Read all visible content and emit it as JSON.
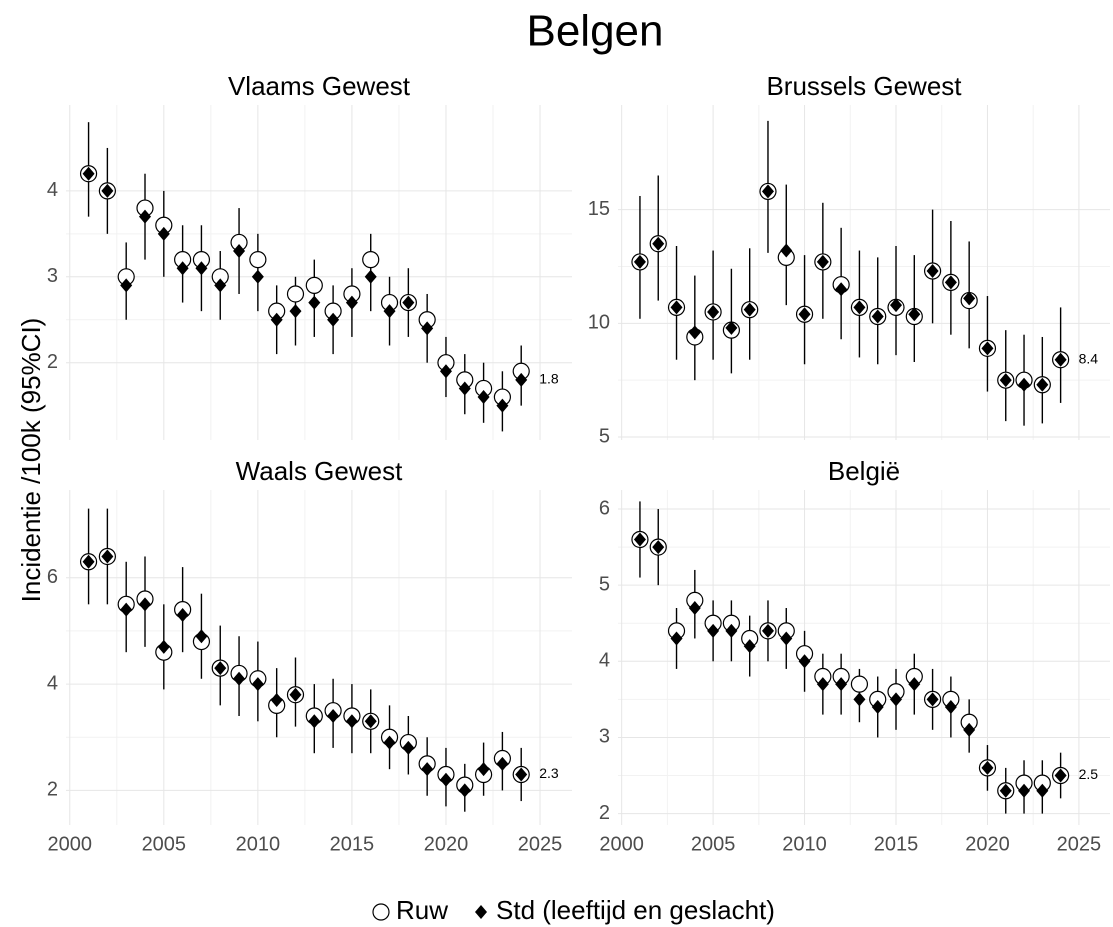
{
  "title": "Belgen",
  "y_label": "Incidentie /100k (95%CI)",
  "legend": [
    "Ruw",
    "Std (leeftijd en geslacht)"
  ],
  "chart_data": [
    {
      "type": "scatter",
      "title": "Vlaams Gewest",
      "x": [
        2001,
        2002,
        2003,
        2004,
        2005,
        2006,
        2007,
        2008,
        2009,
        2010,
        2011,
        2012,
        2013,
        2014,
        2015,
        2016,
        2017,
        2018,
        2019,
        2020,
        2021,
        2022,
        2023,
        2024
      ],
      "series": [
        {
          "marker": "circle",
          "color": "#000000",
          "values": [
            4.2,
            4.0,
            3.0,
            3.8,
            3.6,
            3.2,
            3.2,
            3.0,
            3.4,
            3.2,
            2.6,
            2.8,
            2.9,
            2.6,
            2.8,
            3.2,
            2.7,
            2.7,
            2.5,
            2.0,
            1.8,
            1.7,
            1.6,
            1.9
          ]
        },
        {
          "marker": "diamond",
          "color": "#000000",
          "values": [
            4.2,
            4.0,
            2.9,
            3.7,
            3.5,
            3.1,
            3.1,
            2.9,
            3.3,
            3.0,
            2.5,
            2.6,
            2.7,
            2.5,
            2.7,
            3.0,
            2.6,
            2.7,
            2.4,
            1.9,
            1.7,
            1.6,
            1.5,
            1.8
          ],
          "ci_low": [
            3.7,
            3.5,
            2.5,
            3.2,
            3.0,
            2.7,
            2.6,
            2.5,
            2.8,
            2.6,
            2.1,
            2.2,
            2.3,
            2.1,
            2.3,
            2.6,
            2.2,
            2.3,
            2.0,
            1.6,
            1.4,
            1.3,
            1.2,
            1.5
          ],
          "ci_high": [
            4.8,
            4.5,
            3.4,
            4.2,
            4.0,
            3.6,
            3.6,
            3.3,
            3.8,
            3.5,
            2.9,
            3.0,
            3.2,
            2.9,
            3.1,
            3.5,
            3.0,
            3.1,
            2.8,
            2.3,
            2.1,
            2.0,
            1.9,
            2.2
          ]
        }
      ],
      "end_label": 1.8,
      "xlim": [
        1999.8,
        2026.7
      ],
      "xticks": [
        2000,
        2005,
        2010,
        2015,
        2020,
        2025
      ],
      "ylim": [
        1.1,
        5.0
      ],
      "yticks": [
        2,
        3,
        4
      ],
      "grid": true
    },
    {
      "type": "scatter",
      "title": "Brussels Gewest",
      "x": [
        2001,
        2002,
        2003,
        2004,
        2005,
        2006,
        2007,
        2008,
        2009,
        2010,
        2011,
        2012,
        2013,
        2014,
        2015,
        2016,
        2017,
        2018,
        2019,
        2020,
        2021,
        2022,
        2023,
        2024
      ],
      "series": [
        {
          "marker": "circle",
          "color": "#000000",
          "values": [
            12.7,
            13.5,
            10.7,
            9.4,
            10.5,
            9.7,
            10.6,
            15.8,
            12.9,
            10.4,
            12.7,
            11.7,
            10.7,
            10.3,
            10.7,
            10.3,
            12.3,
            11.8,
            11.0,
            8.9,
            7.5,
            7.5,
            7.3,
            8.4
          ]
        },
        {
          "marker": "diamond",
          "color": "#000000",
          "values": [
            12.7,
            13.5,
            10.7,
            9.6,
            10.5,
            9.8,
            10.6,
            15.8,
            13.2,
            10.4,
            12.7,
            11.5,
            10.7,
            10.3,
            10.8,
            10.4,
            12.3,
            11.8,
            11.1,
            8.9,
            7.5,
            7.3,
            7.3,
            8.4
          ],
          "ci_low": [
            10.2,
            11.0,
            8.4,
            7.5,
            8.4,
            7.8,
            8.4,
            13.1,
            10.8,
            8.2,
            10.2,
            9.3,
            8.5,
            8.2,
            8.6,
            8.3,
            10.0,
            9.5,
            8.9,
            7.0,
            5.7,
            5.5,
            5.6,
            6.5
          ],
          "ci_high": [
            15.6,
            16.5,
            13.4,
            12.1,
            13.2,
            12.4,
            13.3,
            18.9,
            16.1,
            13.0,
            15.3,
            14.2,
            13.2,
            12.9,
            13.4,
            13.0,
            15.0,
            14.5,
            13.6,
            11.2,
            9.7,
            9.5,
            9.4,
            10.7
          ]
        }
      ],
      "end_label": 8.4,
      "xlim": [
        1999.8,
        2026.7
      ],
      "xticks": [
        2000,
        2005,
        2010,
        2015,
        2020,
        2025
      ],
      "ylim": [
        4.87,
        19.6
      ],
      "yticks": [
        5,
        10,
        15
      ],
      "grid": true
    },
    {
      "type": "scatter",
      "title": "Waals Gewest",
      "x": [
        2001,
        2002,
        2003,
        2004,
        2005,
        2006,
        2007,
        2008,
        2009,
        2010,
        2011,
        2012,
        2013,
        2014,
        2015,
        2016,
        2017,
        2018,
        2019,
        2020,
        2021,
        2022,
        2023,
        2024
      ],
      "series": [
        {
          "marker": "circle",
          "color": "#000000",
          "values": [
            6.3,
            6.4,
            5.5,
            5.6,
            4.6,
            5.4,
            4.8,
            4.3,
            4.2,
            4.1,
            3.6,
            3.8,
            3.4,
            3.5,
            3.4,
            3.3,
            3.0,
            2.9,
            2.5,
            2.3,
            2.1,
            2.3,
            2.6,
            2.3
          ]
        },
        {
          "marker": "diamond",
          "color": "#000000",
          "values": [
            6.3,
            6.4,
            5.4,
            5.5,
            4.7,
            5.3,
            4.9,
            4.3,
            4.1,
            4.0,
            3.7,
            3.8,
            3.3,
            3.4,
            3.3,
            3.3,
            2.9,
            2.8,
            2.4,
            2.2,
            2.0,
            2.4,
            2.5,
            2.3
          ],
          "ci_low": [
            5.5,
            5.5,
            4.6,
            4.7,
            3.9,
            4.6,
            4.1,
            3.6,
            3.4,
            3.3,
            3.0,
            3.2,
            2.7,
            2.8,
            2.7,
            2.7,
            2.4,
            2.3,
            1.9,
            1.7,
            1.6,
            1.9,
            2.0,
            1.8
          ],
          "ci_high": [
            7.3,
            7.3,
            6.3,
            6.4,
            5.5,
            6.2,
            5.7,
            5.1,
            4.9,
            4.8,
            4.3,
            4.5,
            4.0,
            4.1,
            4.0,
            3.9,
            3.6,
            3.4,
            3.0,
            2.8,
            2.5,
            2.9,
            3.1,
            2.8
          ]
        }
      ],
      "end_label": 2.3,
      "xlim": [
        1999.8,
        2026.7
      ],
      "xticks": [
        2000,
        2005,
        2010,
        2015,
        2020,
        2025
      ],
      "ylim": [
        1.35,
        7.65
      ],
      "yticks": [
        2,
        4,
        6
      ],
      "grid": true
    },
    {
      "type": "scatter",
      "title": "België",
      "x": [
        2001,
        2002,
        2003,
        2004,
        2005,
        2006,
        2007,
        2008,
        2009,
        2010,
        2011,
        2012,
        2013,
        2014,
        2015,
        2016,
        2017,
        2018,
        2019,
        2020,
        2021,
        2022,
        2023,
        2024
      ],
      "series": [
        {
          "marker": "circle",
          "color": "#000000",
          "values": [
            5.6,
            5.5,
            4.4,
            4.8,
            4.5,
            4.5,
            4.3,
            4.4,
            4.4,
            4.1,
            3.8,
            3.8,
            3.7,
            3.5,
            3.6,
            3.8,
            3.5,
            3.5,
            3.2,
            2.6,
            2.3,
            2.4,
            2.4,
            2.5
          ]
        },
        {
          "marker": "diamond",
          "color": "#000000",
          "values": [
            5.6,
            5.5,
            4.3,
            4.7,
            4.4,
            4.4,
            4.2,
            4.4,
            4.3,
            4.0,
            3.7,
            3.7,
            3.5,
            3.4,
            3.5,
            3.7,
            3.5,
            3.4,
            3.1,
            2.6,
            2.3,
            2.3,
            2.3,
            2.5
          ],
          "ci_low": [
            5.1,
            5.0,
            3.9,
            4.3,
            4.0,
            4.0,
            3.8,
            4.0,
            3.9,
            3.6,
            3.3,
            3.3,
            3.2,
            3.0,
            3.1,
            3.3,
            3.1,
            3.0,
            2.8,
            2.3,
            2.0,
            2.0,
            2.0,
            2.2
          ],
          "ci_high": [
            6.1,
            6.0,
            4.7,
            5.2,
            4.8,
            4.8,
            4.6,
            4.8,
            4.7,
            4.4,
            4.1,
            4.1,
            3.9,
            3.8,
            3.9,
            4.1,
            3.9,
            3.8,
            3.5,
            2.9,
            2.6,
            2.7,
            2.7,
            2.8
          ]
        }
      ],
      "end_label": 2.5,
      "xlim": [
        1999.8,
        2026.7
      ],
      "xticks": [
        2000,
        2005,
        2010,
        2015,
        2020,
        2025
      ],
      "ylim": [
        1.85,
        6.25
      ],
      "yticks": [
        2,
        3,
        4,
        5,
        6
      ],
      "grid": true
    }
  ]
}
